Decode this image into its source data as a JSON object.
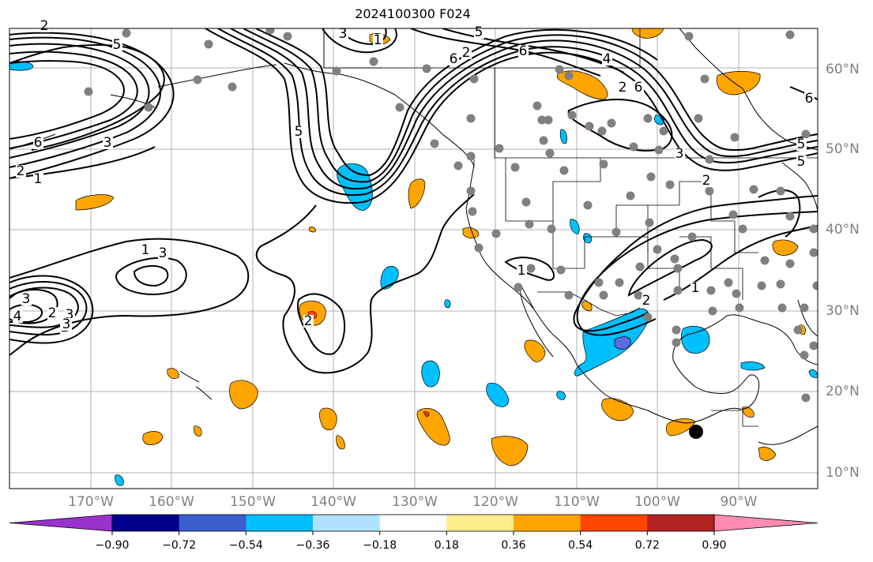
{
  "title": "2024100300 F024",
  "map": {
    "lon_labels": [
      "170°W",
      "160°W",
      "150°W",
      "140°W",
      "130°W",
      "120°W",
      "110°W",
      "100°W",
      "90°W"
    ],
    "lat_labels": [
      "60°N",
      "50°N",
      "40°N",
      "30°N",
      "20°N",
      "10°N"
    ],
    "contour_labels": [
      "5",
      "6",
      "3",
      "2",
      "1",
      "5",
      "3",
      "6",
      "2",
      "5",
      "6",
      "4",
      "2",
      "6",
      "3",
      "5",
      "6",
      "5",
      "2",
      "3",
      "1",
      "2",
      "3",
      "2",
      "3",
      "4",
      "3",
      "2",
      "1",
      "2",
      "1",
      "2",
      "1"
    ],
    "station_color": "#808080",
    "marker": "storm-center-marker"
  },
  "colorbar": {
    "ticks": [
      "−0.90",
      "−0.72",
      "−0.54",
      "−0.36",
      "−0.18",
      "0.18",
      "0.36",
      "0.54",
      "0.72",
      "0.90"
    ],
    "colors": [
      "#9932cc",
      "#00008b",
      "#3a5fcd",
      "#00bfff",
      "#b0e2ff",
      "#ffffff",
      "#ffec8b",
      "#ffa500",
      "#ff4500",
      "#b22222",
      "#ff8cb4"
    ]
  }
}
